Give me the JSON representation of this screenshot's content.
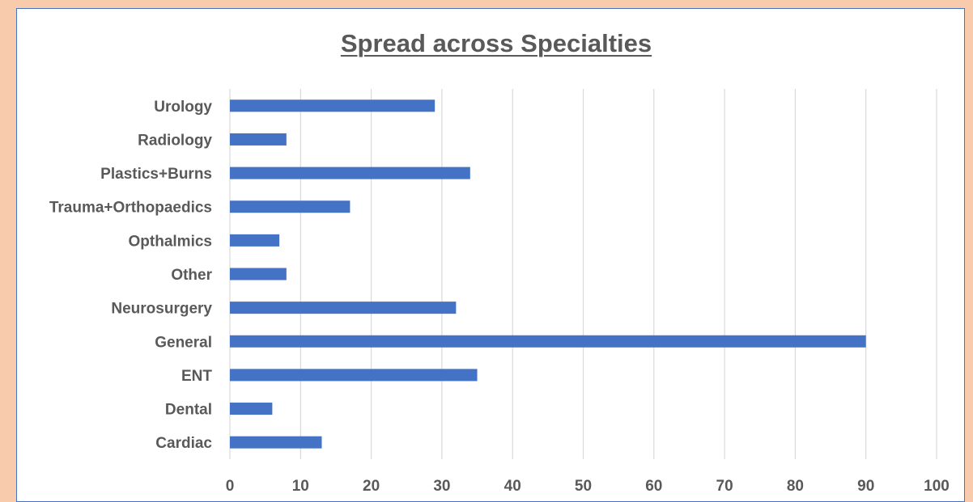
{
  "chart_data": {
    "type": "bar",
    "orientation": "horizontal",
    "title": "Spread across Specialties",
    "categories": [
      "Cardiac",
      "Dental ",
      "ENT",
      "General",
      "Neurosurgery",
      "Other ",
      "Opthalmics",
      "Trauma+Orthopaedics",
      "Plastics+Burns",
      "Radiology",
      "Urology"
    ],
    "values": [
      13,
      6,
      35,
      90,
      32,
      8,
      7,
      17,
      34,
      8,
      29
    ],
    "xlim": [
      0,
      100
    ],
    "xticks": [
      0,
      10,
      20,
      30,
      40,
      50,
      60,
      70,
      80,
      90,
      100
    ],
    "grid": "vertical",
    "legend": "none",
    "bar_color": "#4472c4",
    "gridline_color": "#d9d9d9",
    "text_color": "#595959"
  }
}
